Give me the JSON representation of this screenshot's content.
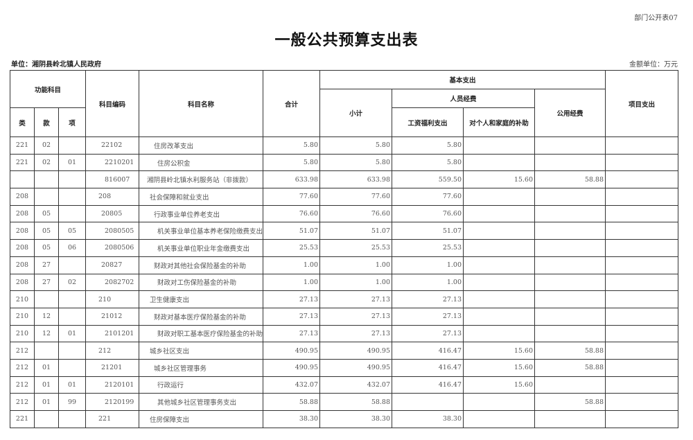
{
  "form_no": "部门公开表07",
  "title": "一般公共预算支出表",
  "unit_label": "单位：湘阴县岭北镇人民政府",
  "money_unit": "金额单位：万元",
  "headers": {
    "func": "功能科目",
    "lei": "类",
    "kuan": "款",
    "xiang": "项",
    "code": "科目编码",
    "name": "科目名称",
    "total": "合计",
    "basic": "基本支出",
    "subtotal": "小计",
    "personnel": "人员经费",
    "salary": "工资福利支出",
    "subsidy": "对个人和家庭的补助",
    "public": "公用经费",
    "project": "项目支出"
  },
  "rows": [
    {
      "lei": "221",
      "kuan": "02",
      "xiang": "",
      "code": "22102",
      "name": "住房改革支出",
      "level": 2,
      "total": "5.80",
      "subtotal": "5.80",
      "salary": "5.80",
      "subsidy": "",
      "public": "",
      "project": ""
    },
    {
      "lei": "221",
      "kuan": "02",
      "xiang": "01",
      "code": "2210201",
      "name": "住房公积金",
      "level": 3,
      "total": "5.80",
      "subtotal": "5.80",
      "salary": "5.80",
      "subsidy": "",
      "public": "",
      "project": ""
    },
    {
      "lei": "",
      "kuan": "",
      "xiang": "",
      "code": "816007",
      "name": "湘阴县岭北镇水利服务站（非拨款）",
      "level": 0,
      "total": "633.98",
      "subtotal": "633.98",
      "salary": "559.50",
      "subsidy": "15.60",
      "public": "58.88",
      "project": ""
    },
    {
      "lei": "208",
      "kuan": "",
      "xiang": "",
      "code": "208",
      "name": "社会保障和就业支出",
      "level": 1,
      "total": "77.60",
      "subtotal": "77.60",
      "salary": "77.60",
      "subsidy": "",
      "public": "",
      "project": ""
    },
    {
      "lei": "208",
      "kuan": "05",
      "xiang": "",
      "code": "20805",
      "name": "行政事业单位养老支出",
      "level": 2,
      "total": "76.60",
      "subtotal": "76.60",
      "salary": "76.60",
      "subsidy": "",
      "public": "",
      "project": ""
    },
    {
      "lei": "208",
      "kuan": "05",
      "xiang": "05",
      "code": "2080505",
      "name": "机关事业单位基本养老保险缴费支出",
      "level": 3,
      "total": "51.07",
      "subtotal": "51.07",
      "salary": "51.07",
      "subsidy": "",
      "public": "",
      "project": ""
    },
    {
      "lei": "208",
      "kuan": "05",
      "xiang": "06",
      "code": "2080506",
      "name": "机关事业单位职业年金缴费支出",
      "level": 3,
      "total": "25.53",
      "subtotal": "25.53",
      "salary": "25.53",
      "subsidy": "",
      "public": "",
      "project": ""
    },
    {
      "lei": "208",
      "kuan": "27",
      "xiang": "",
      "code": "20827",
      "name": "财政对其他社会保险基金的补助",
      "level": 2,
      "total": "1.00",
      "subtotal": "1.00",
      "salary": "1.00",
      "subsidy": "",
      "public": "",
      "project": ""
    },
    {
      "lei": "208",
      "kuan": "27",
      "xiang": "02",
      "code": "2082702",
      "name": "财政对工伤保险基金的补助",
      "level": 3,
      "total": "1.00",
      "subtotal": "1.00",
      "salary": "1.00",
      "subsidy": "",
      "public": "",
      "project": ""
    },
    {
      "lei": "210",
      "kuan": "",
      "xiang": "",
      "code": "210",
      "name": "卫生健康支出",
      "level": 1,
      "total": "27.13",
      "subtotal": "27.13",
      "salary": "27.13",
      "subsidy": "",
      "public": "",
      "project": ""
    },
    {
      "lei": "210",
      "kuan": "12",
      "xiang": "",
      "code": "21012",
      "name": "财政对基本医疗保险基金的补助",
      "level": 2,
      "total": "27.13",
      "subtotal": "27.13",
      "salary": "27.13",
      "subsidy": "",
      "public": "",
      "project": ""
    },
    {
      "lei": "210",
      "kuan": "12",
      "xiang": "01",
      "code": "2101201",
      "name": "财政对职工基本医疗保险基金的补助",
      "level": 3,
      "total": "27.13",
      "subtotal": "27.13",
      "salary": "27.13",
      "subsidy": "",
      "public": "",
      "project": ""
    },
    {
      "lei": "212",
      "kuan": "",
      "xiang": "",
      "code": "212",
      "name": "城乡社区支出",
      "level": 1,
      "total": "490.95",
      "subtotal": "490.95",
      "salary": "416.47",
      "subsidy": "15.60",
      "public": "58.88",
      "project": ""
    },
    {
      "lei": "212",
      "kuan": "01",
      "xiang": "",
      "code": "21201",
      "name": "城乡社区管理事务",
      "level": 2,
      "total": "490.95",
      "subtotal": "490.95",
      "salary": "416.47",
      "subsidy": "15.60",
      "public": "58.88",
      "project": ""
    },
    {
      "lei": "212",
      "kuan": "01",
      "xiang": "01",
      "code": "2120101",
      "name": "行政运行",
      "level": 3,
      "total": "432.07",
      "subtotal": "432.07",
      "salary": "416.47",
      "subsidy": "15.60",
      "public": "",
      "project": ""
    },
    {
      "lei": "212",
      "kuan": "01",
      "xiang": "99",
      "code": "2120199",
      "name": "其他城乡社区管理事务支出",
      "level": 3,
      "total": "58.88",
      "subtotal": "58.88",
      "salary": "",
      "subsidy": "",
      "public": "58.88",
      "project": ""
    },
    {
      "lei": "221",
      "kuan": "",
      "xiang": "",
      "code": "221",
      "name": "住房保障支出",
      "level": 1,
      "total": "38.30",
      "subtotal": "38.30",
      "salary": "38.30",
      "subsidy": "",
      "public": "",
      "project": ""
    }
  ]
}
